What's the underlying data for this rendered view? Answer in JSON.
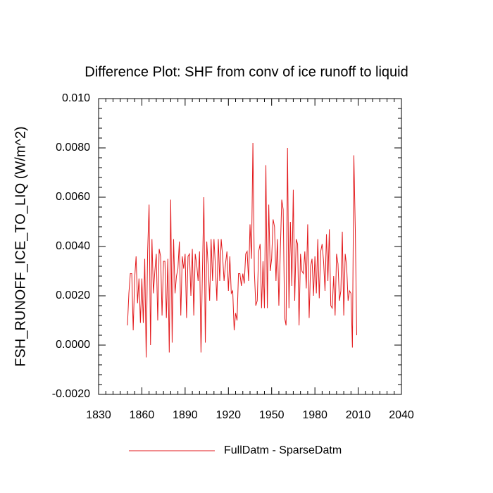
{
  "chart_data": {
    "type": "line",
    "title": "Difference Plot: SHF from conv of ice runoff to liquid",
    "y_label": "FSH_RUNOFF_ICE_TO_LIQ  (W/m^2)",
    "x": [
      1850,
      1851,
      1852,
      1853,
      1854,
      1855,
      1856,
      1857,
      1858,
      1859,
      1860,
      1861,
      1862,
      1863,
      1864,
      1865,
      1866,
      1867,
      1868,
      1869,
      1870,
      1871,
      1872,
      1873,
      1874,
      1875,
      1876,
      1877,
      1878,
      1879,
      1880,
      1881,
      1882,
      1883,
      1884,
      1885,
      1886,
      1887,
      1888,
      1889,
      1890,
      1891,
      1892,
      1893,
      1894,
      1895,
      1896,
      1897,
      1898,
      1899,
      1900,
      1901,
      1902,
      1903,
      1904,
      1905,
      1906,
      1907,
      1908,
      1909,
      1910,
      1911,
      1912,
      1913,
      1914,
      1915,
      1916,
      1917,
      1918,
      1919,
      1920,
      1921,
      1922,
      1923,
      1924,
      1925,
      1926,
      1927,
      1928,
      1929,
      1930,
      1931,
      1932,
      1933,
      1934,
      1935,
      1936,
      1937,
      1938,
      1939,
      1940,
      1941,
      1942,
      1943,
      1944,
      1945,
      1946,
      1947,
      1948,
      1949,
      1950,
      1951,
      1952,
      1953,
      1954,
      1955,
      1956,
      1957,
      1958,
      1959,
      1960,
      1961,
      1962,
      1963,
      1964,
      1965,
      1966,
      1967,
      1968,
      1969,
      1970,
      1971,
      1972,
      1973,
      1974,
      1975,
      1976,
      1977,
      1978,
      1979,
      1980,
      1981,
      1982,
      1983,
      1984,
      1985,
      1986,
      1987,
      1988,
      1989,
      1990,
      1991,
      1992,
      1993,
      1994,
      1995,
      1996,
      1997,
      1998,
      1999,
      2000,
      2001,
      2002,
      2003,
      2004,
      2005,
      2006,
      2007,
      2008,
      2009
    ],
    "series": [
      {
        "name": "FullDatm - SparseDatm",
        "color": "#e3191c",
        "values": [
          0.0008,
          0.0021,
          0.0029,
          0.0029,
          0.0006,
          0.0027,
          0.0036,
          0.0017,
          0.0027,
          0.0009,
          0.0027,
          0.0009,
          0.0035,
          -0.0005,
          0.0038,
          0.0057,
          0.0,
          0.0043,
          0.0021,
          0.003,
          0.0037,
          0.001,
          0.0039,
          0.0036,
          0.0012,
          0.0034,
          0.0034,
          0.0011,
          0.0035,
          -0.0003,
          0.0059,
          0.0001,
          0.0043,
          0.0021,
          0.0028,
          0.0031,
          0.0042,
          0.0012,
          0.0036,
          0.0031,
          0.0037,
          0.0011,
          0.0036,
          0.0037,
          0.002,
          0.0039,
          0.0012,
          0.0037,
          0.0033,
          0.0026,
          0.0038,
          -0.0003,
          0.003,
          0.006,
          0.0001,
          0.0042,
          0.0032,
          0.0018,
          0.0043,
          0.0026,
          0.0043,
          0.0032,
          0.0018,
          0.0043,
          0.0026,
          0.0043,
          0.0036,
          0.0026,
          0.0033,
          0.0038,
          0.0022,
          0.0036,
          0.0021,
          0.0022,
          0.0006,
          0.0013,
          0.001,
          0.0029,
          0.0029,
          0.0024,
          0.0029,
          0.0025,
          0.0037,
          0.0038,
          0.0026,
          0.0049,
          0.0035,
          0.0082,
          0.003,
          0.0016,
          0.0018,
          0.0038,
          0.0041,
          0.0015,
          0.0034,
          0.0015,
          0.0073,
          0.0015,
          0.0057,
          0.003,
          0.0035,
          0.0051,
          0.0048,
          0.0026,
          0.0043,
          0.0016,
          0.0038,
          0.0059,
          0.0055,
          0.0011,
          0.0008,
          0.008,
          0.0015,
          0.005,
          0.0024,
          0.0063,
          0.0018,
          0.0043,
          0.0041,
          0.0008,
          0.0037,
          0.003,
          0.0029,
          0.0038,
          0.0023,
          0.0049,
          0.0011,
          0.0032,
          0.0035,
          0.002,
          0.0036,
          0.0021,
          0.0043,
          0.0019,
          0.0038,
          0.0041,
          0.0034,
          0.0022,
          0.0045,
          0.0026,
          0.0047,
          0.0016,
          0.0015,
          0.0028,
          0.0012,
          0.0037,
          0.0033,
          0.0018,
          0.0022,
          0.0046,
          0.0012,
          0.0037,
          0.0032,
          0.0018,
          0.0022,
          0.0021,
          -0.0001,
          0.0077,
          0.0047,
          0.0004
        ]
      }
    ],
    "xlim": [
      1830,
      2040
    ],
    "xticks": [
      1830,
      1860,
      1890,
      1920,
      1950,
      1980,
      2010,
      2040
    ],
    "ylim": [
      -0.002,
      0.01
    ],
    "yticks": [
      {
        "value": -0.002,
        "label": "-0.0020"
      },
      {
        "value": 0,
        "label": "0.0000"
      },
      {
        "value": 0.002,
        "label": "0.0020"
      },
      {
        "value": 0.004,
        "label": "0.0040"
      },
      {
        "value": 0.006,
        "label": "0.0060"
      },
      {
        "value": 0.008,
        "label": "0.0080"
      },
      {
        "value": 0.01,
        "label": "0.010"
      }
    ],
    "grid": false,
    "legend": "bottom"
  }
}
